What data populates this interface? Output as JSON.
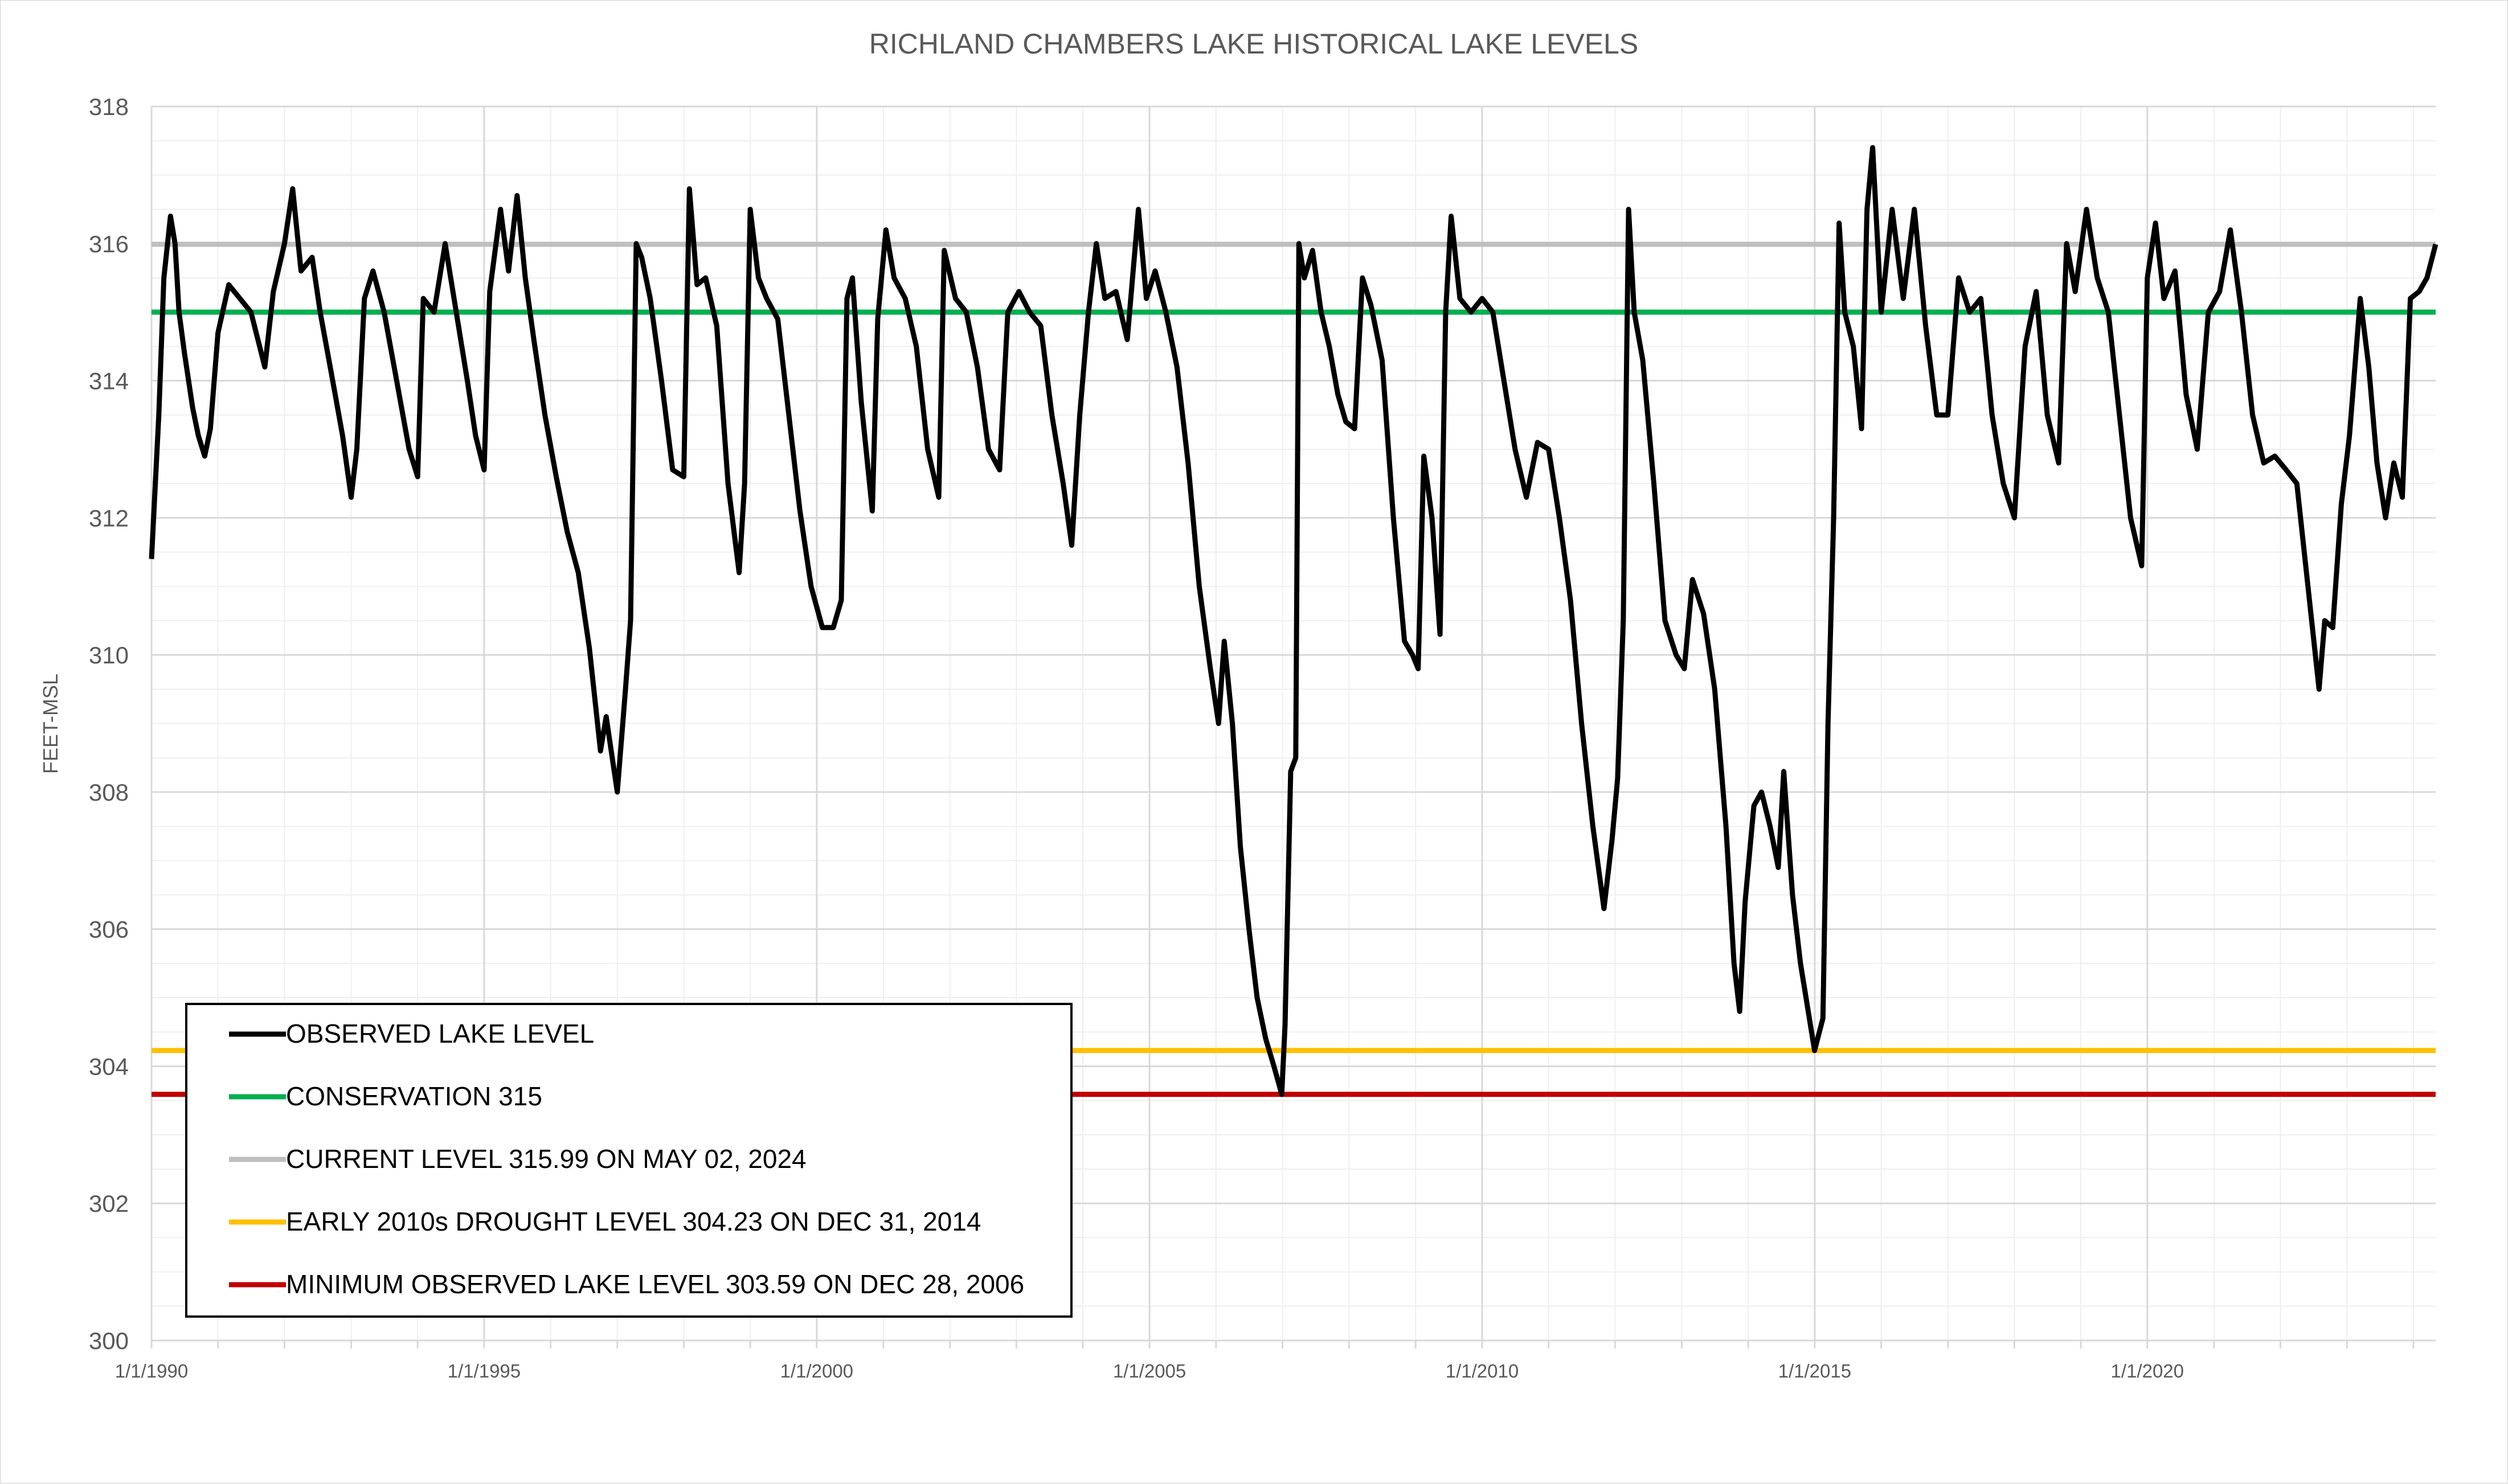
{
  "chart_data": {
    "type": "line",
    "title": "RICHLAND CHAMBERS LAKE HISTORICAL LAKE LEVELS",
    "xlabel": "",
    "ylabel": "FEET-MSL",
    "ylim": [
      300,
      318
    ],
    "yticks": [
      "300",
      "302",
      "304",
      "306",
      "308",
      "310",
      "312",
      "314",
      "316",
      "318"
    ],
    "xlim": [
      "1990-01-01",
      "2024-05-02"
    ],
    "xticks": [
      "1/1/1990",
      "1/1/1995",
      "1/1/2000",
      "1/1/2005",
      "1/1/2010",
      "1/1/2015",
      "1/1/2020"
    ],
    "grid": true,
    "legend_position": "bottom-left",
    "series": [
      {
        "name": "OBSERVED LAKE LEVEL",
        "color": "#000000",
        "points": [
          [
            "1990-01-01",
            311.4
          ],
          [
            "1990-02-10",
            313.5
          ],
          [
            "1990-03-10",
            315.5
          ],
          [
            "1990-04-15",
            316.4
          ],
          [
            "1990-05-10",
            316.0
          ],
          [
            "1990-06-01",
            315.0
          ],
          [
            "1990-07-01",
            314.4
          ],
          [
            "1990-08-15",
            313.6
          ],
          [
            "1990-09-15",
            313.2
          ],
          [
            "1990-10-20",
            312.9
          ],
          [
            "1990-11-20",
            313.3
          ],
          [
            "1991-01-01",
            314.7
          ],
          [
            "1991-03-01",
            315.4
          ],
          [
            "1991-05-01",
            315.2
          ],
          [
            "1991-07-01",
            315.0
          ],
          [
            "1991-09-15",
            314.2
          ],
          [
            "1991-11-01",
            315.3
          ],
          [
            "1992-01-01",
            316.0
          ],
          [
            "1992-02-15",
            316.8
          ],
          [
            "1992-04-01",
            315.6
          ],
          [
            "1992-06-01",
            315.8
          ],
          [
            "1992-07-15",
            315.0
          ],
          [
            "1992-09-15",
            314.1
          ],
          [
            "1992-11-15",
            313.2
          ],
          [
            "1993-01-01",
            312.3
          ],
          [
            "1993-02-01",
            313.0
          ],
          [
            "1993-03-15",
            315.2
          ],
          [
            "1993-05-01",
            315.6
          ],
          [
            "1993-07-01",
            315.0
          ],
          [
            "1993-09-01",
            314.1
          ],
          [
            "1993-11-15",
            313.0
          ],
          [
            "1994-01-01",
            312.6
          ],
          [
            "1994-02-01",
            315.2
          ],
          [
            "1994-04-01",
            315.0
          ],
          [
            "1994-06-01",
            316.0
          ],
          [
            "1994-08-01",
            315.0
          ],
          [
            "1994-10-01",
            314.0
          ],
          [
            "1994-11-15",
            313.2
          ],
          [
            "1995-01-01",
            312.7
          ],
          [
            "1995-02-01",
            315.3
          ],
          [
            "1995-04-01",
            316.5
          ],
          [
            "1995-05-15",
            315.6
          ],
          [
            "1995-07-01",
            316.7
          ],
          [
            "1995-08-15",
            315.5
          ],
          [
            "1995-10-01",
            314.6
          ],
          [
            "1995-12-01",
            313.5
          ],
          [
            "1996-02-01",
            312.6
          ],
          [
            "1996-04-01",
            311.8
          ],
          [
            "1996-06-01",
            311.2
          ],
          [
            "1996-08-01",
            310.1
          ],
          [
            "1996-10-01",
            308.6
          ],
          [
            "1996-11-01",
            309.1
          ],
          [
            "1997-01-01",
            308.0
          ],
          [
            "1997-02-15",
            309.5
          ],
          [
            "1997-03-15",
            310.5
          ],
          [
            "1997-04-15",
            316.0
          ],
          [
            "1997-05-15",
            315.8
          ],
          [
            "1997-07-01",
            315.2
          ],
          [
            "1997-09-01",
            314.0
          ],
          [
            "1997-11-01",
            312.7
          ],
          [
            "1998-01-01",
            312.6
          ],
          [
            "1998-02-01",
            316.8
          ],
          [
            "1998-03-15",
            315.4
          ],
          [
            "1998-05-01",
            315.5
          ],
          [
            "1998-07-01",
            314.8
          ],
          [
            "1998-09-01",
            312.5
          ],
          [
            "1998-11-01",
            311.2
          ],
          [
            "1998-12-01",
            312.5
          ],
          [
            "1999-01-01",
            316.5
          ],
          [
            "1999-02-15",
            315.5
          ],
          [
            "1999-04-01",
            315.2
          ],
          [
            "1999-06-01",
            314.9
          ],
          [
            "1999-08-01",
            313.5
          ],
          [
            "1999-10-01",
            312.1
          ],
          [
            "1999-12-01",
            311.0
          ],
          [
            "2000-02-01",
            310.4
          ],
          [
            "2000-04-01",
            310.4
          ],
          [
            "2000-05-15",
            310.8
          ],
          [
            "2000-06-15",
            315.2
          ],
          [
            "2000-07-15",
            315.5
          ],
          [
            "2000-09-01",
            313.7
          ],
          [
            "2000-11-01",
            312.1
          ],
          [
            "2000-12-01",
            314.9
          ],
          [
            "2001-01-15",
            316.2
          ],
          [
            "2001-03-01",
            315.5
          ],
          [
            "2001-05-01",
            315.2
          ],
          [
            "2001-07-01",
            314.5
          ],
          [
            "2001-09-01",
            313.0
          ],
          [
            "2001-11-01",
            312.3
          ],
          [
            "2001-12-01",
            315.9
          ],
          [
            "2002-02-01",
            315.2
          ],
          [
            "2002-04-01",
            315.0
          ],
          [
            "2002-06-01",
            314.2
          ],
          [
            "2002-08-01",
            313.0
          ],
          [
            "2002-10-01",
            312.7
          ],
          [
            "2002-11-15",
            315.0
          ],
          [
            "2003-01-15",
            315.3
          ],
          [
            "2003-03-15",
            315.0
          ],
          [
            "2003-05-15",
            314.8
          ],
          [
            "2003-07-15",
            313.5
          ],
          [
            "2003-09-15",
            312.5
          ],
          [
            "2003-11-01",
            311.6
          ],
          [
            "2003-12-15",
            313.5
          ],
          [
            "2004-02-01",
            315.0
          ],
          [
            "2004-03-15",
            316.0
          ],
          [
            "2004-05-01",
            315.2
          ],
          [
            "2004-07-01",
            315.3
          ],
          [
            "2004-09-01",
            314.6
          ],
          [
            "2004-11-01",
            316.5
          ],
          [
            "2004-12-15",
            315.2
          ],
          [
            "2005-02-01",
            315.6
          ],
          [
            "2005-04-01",
            315.0
          ],
          [
            "2005-06-01",
            314.2
          ],
          [
            "2005-08-01",
            312.8
          ],
          [
            "2005-10-01",
            311.0
          ],
          [
            "2005-12-01",
            309.8
          ],
          [
            "2006-01-15",
            309.0
          ],
          [
            "2006-02-15",
            310.2
          ],
          [
            "2006-04-01",
            309.0
          ],
          [
            "2006-05-15",
            307.2
          ],
          [
            "2006-07-01",
            306.0
          ],
          [
            "2006-08-15",
            305.0
          ],
          [
            "2006-10-01",
            304.4
          ],
          [
            "2006-11-15",
            304.0
          ],
          [
            "2006-12-28",
            303.59
          ],
          [
            "2007-01-15",
            304.6
          ],
          [
            "2007-02-15",
            308.3
          ],
          [
            "2007-03-15",
            308.5
          ],
          [
            "2007-04-01",
            316.0
          ],
          [
            "2007-05-01",
            315.5
          ],
          [
            "2007-06-15",
            315.9
          ],
          [
            "2007-08-01",
            315.0
          ],
          [
            "2007-09-15",
            314.5
          ],
          [
            "2007-11-01",
            313.8
          ],
          [
            "2007-12-15",
            313.4
          ],
          [
            "2008-02-01",
            313.3
          ],
          [
            "2008-03-15",
            315.5
          ],
          [
            "2008-05-01",
            315.1
          ],
          [
            "2008-07-01",
            314.3
          ],
          [
            "2008-09-01",
            312.0
          ],
          [
            "2008-11-01",
            310.2
          ],
          [
            "2008-12-15",
            310.0
          ],
          [
            "2009-01-15",
            309.8
          ],
          [
            "2009-02-15",
            312.9
          ],
          [
            "2009-04-01",
            312.0
          ],
          [
            "2009-05-15",
            310.3
          ],
          [
            "2009-06-15",
            315.0
          ],
          [
            "2009-07-15",
            316.4
          ],
          [
            "2009-09-01",
            315.2
          ],
          [
            "2009-11-01",
            315.0
          ],
          [
            "2010-01-01",
            315.2
          ],
          [
            "2010-03-01",
            315.0
          ],
          [
            "2010-05-01",
            314.0
          ],
          [
            "2010-07-01",
            313.0
          ],
          [
            "2010-09-01",
            312.3
          ],
          [
            "2010-11-01",
            313.1
          ],
          [
            "2011-01-01",
            313.0
          ],
          [
            "2011-03-01",
            312.0
          ],
          [
            "2011-05-01",
            310.8
          ],
          [
            "2011-07-01",
            309.0
          ],
          [
            "2011-09-01",
            307.5
          ],
          [
            "2011-11-01",
            306.3
          ],
          [
            "2011-12-15",
            307.3
          ],
          [
            "2012-01-15",
            308.2
          ],
          [
            "2012-02-15",
            310.5
          ],
          [
            "2012-03-15",
            316.5
          ],
          [
            "2012-04-15",
            315.0
          ],
          [
            "2012-06-01",
            314.3
          ],
          [
            "2012-08-01",
            312.5
          ],
          [
            "2012-10-01",
            310.5
          ],
          [
            "2012-12-01",
            310.0
          ],
          [
            "2013-01-15",
            309.8
          ],
          [
            "2013-03-01",
            311.1
          ],
          [
            "2013-05-01",
            310.6
          ],
          [
            "2013-07-01",
            309.5
          ],
          [
            "2013-09-01",
            307.5
          ],
          [
            "2013-10-15",
            305.5
          ],
          [
            "2013-11-15",
            304.8
          ],
          [
            "2013-12-15",
            306.4
          ],
          [
            "2014-02-01",
            307.8
          ],
          [
            "2014-03-15",
            308.0
          ],
          [
            "2014-05-01",
            307.5
          ],
          [
            "2014-06-15",
            306.9
          ],
          [
            "2014-07-15",
            308.3
          ],
          [
            "2014-09-01",
            306.5
          ],
          [
            "2014-10-15",
            305.5
          ],
          [
            "2014-12-31",
            304.23
          ],
          [
            "2015-02-15",
            304.7
          ],
          [
            "2015-03-15",
            309.0
          ],
          [
            "2015-04-15",
            312.0
          ],
          [
            "2015-05-15",
            316.3
          ],
          [
            "2015-06-15",
            315.0
          ],
          [
            "2015-08-01",
            314.5
          ],
          [
            "2015-09-15",
            313.3
          ],
          [
            "2015-10-15",
            316.5
          ],
          [
            "2015-11-15",
            317.4
          ],
          [
            "2016-01-01",
            315.0
          ],
          [
            "2016-03-01",
            316.5
          ],
          [
            "2016-05-01",
            315.2
          ],
          [
            "2016-07-01",
            316.5
          ],
          [
            "2016-09-01",
            314.8
          ],
          [
            "2016-11-01",
            313.5
          ],
          [
            "2017-01-01",
            313.5
          ],
          [
            "2017-03-01",
            315.5
          ],
          [
            "2017-05-01",
            315.0
          ],
          [
            "2017-07-01",
            315.2
          ],
          [
            "2017-09-01",
            313.5
          ],
          [
            "2017-11-01",
            312.5
          ],
          [
            "2018-01-01",
            312.0
          ],
          [
            "2018-03-01",
            314.5
          ],
          [
            "2018-05-01",
            315.3
          ],
          [
            "2018-07-01",
            313.5
          ],
          [
            "2018-09-01",
            312.8
          ],
          [
            "2018-10-15",
            316.0
          ],
          [
            "2018-12-01",
            315.3
          ],
          [
            "2019-02-01",
            316.5
          ],
          [
            "2019-04-01",
            315.5
          ],
          [
            "2019-06-01",
            315.0
          ],
          [
            "2019-08-01",
            313.5
          ],
          [
            "2019-10-01",
            312.0
          ],
          [
            "2019-12-01",
            311.3
          ],
          [
            "2020-01-01",
            315.5
          ],
          [
            "2020-02-15",
            316.3
          ],
          [
            "2020-04-01",
            315.2
          ],
          [
            "2020-06-01",
            315.6
          ],
          [
            "2020-08-01",
            313.8
          ],
          [
            "2020-10-01",
            313.0
          ],
          [
            "2020-12-01",
            315.0
          ],
          [
            "2021-02-01",
            315.3
          ],
          [
            "2021-04-01",
            316.2
          ],
          [
            "2021-06-01",
            315.0
          ],
          [
            "2021-08-01",
            313.5
          ],
          [
            "2021-10-01",
            312.8
          ],
          [
            "2021-12-01",
            312.9
          ],
          [
            "2022-02-01",
            312.7
          ],
          [
            "2022-04-01",
            312.5
          ],
          [
            "2022-06-01",
            311.0
          ],
          [
            "2022-08-01",
            309.5
          ],
          [
            "2022-09-01",
            310.5
          ],
          [
            "2022-10-15",
            310.4
          ],
          [
            "2022-12-01",
            312.2
          ],
          [
            "2023-01-15",
            313.2
          ],
          [
            "2023-03-15",
            315.2
          ],
          [
            "2023-05-01",
            314.2
          ],
          [
            "2023-06-15",
            312.8
          ],
          [
            "2023-08-01",
            312.0
          ],
          [
            "2023-09-15",
            312.8
          ],
          [
            "2023-11-01",
            312.3
          ],
          [
            "2023-12-15",
            315.2
          ],
          [
            "2024-02-01",
            315.3
          ],
          [
            "2024-03-15",
            315.5
          ],
          [
            "2024-05-02",
            315.99
          ]
        ]
      },
      {
        "name": "CONSERVATION 315",
        "color": "#00b050",
        "constant": 315
      },
      {
        "name": "CURRENT LEVEL 315.99 ON MAY 02, 2024",
        "color": "#bfbfbf",
        "constant": 315.99
      },
      {
        "name": "EARLY 2010s DROUGHT LEVEL 304.23 ON DEC 31, 2014",
        "color": "#ffc000",
        "constant": 304.23
      },
      {
        "name": "MINIMUM OBSERVED LAKE LEVEL 303.59 ON DEC 28, 2006",
        "color": "#c00000",
        "constant": 303.59
      }
    ]
  }
}
